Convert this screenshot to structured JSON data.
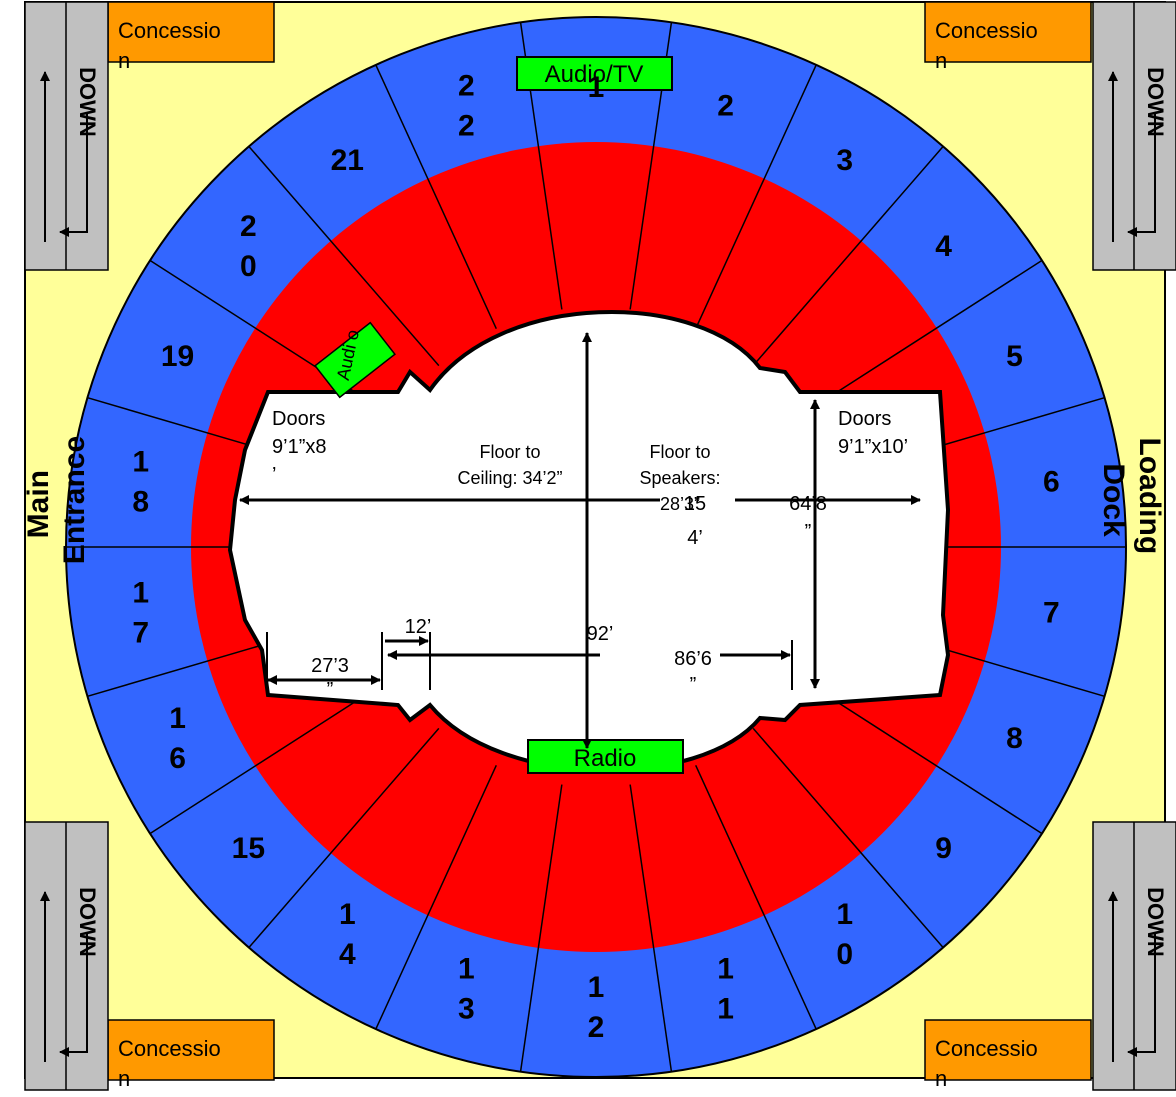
{
  "colors": {
    "background": "#ffff99",
    "outer_ring": "#3366ff",
    "inner_ring": "#ff0000",
    "concession": "#ff9900",
    "stairs": "#c0c0c0",
    "booth": "#00ff00",
    "floor": "#ffffff"
  },
  "concession_label": "Concessio\nn",
  "stairs_label": "DOWN",
  "booths": {
    "audio_tv": "Audio/TV",
    "radio": "Radio",
    "audio_small": "Audi\no"
  },
  "entrances": {
    "main": "Main\nEntrance",
    "loading": "Loading\nDock"
  },
  "sections": [
    {
      "label": "1"
    },
    {
      "label": "2"
    },
    {
      "label": "3"
    },
    {
      "label": "4"
    },
    {
      "label": "5"
    },
    {
      "label": "6"
    },
    {
      "label": "7"
    },
    {
      "label": "8"
    },
    {
      "label": "9"
    },
    {
      "label": "1\n0"
    },
    {
      "label": "1\n1"
    },
    {
      "label": "1\n2"
    },
    {
      "label": "1\n3"
    },
    {
      "label": "1\n4"
    },
    {
      "label": "15"
    },
    {
      "label": "1\n6"
    },
    {
      "label": "1\n7"
    },
    {
      "label": "1\n8"
    },
    {
      "label": "19"
    },
    {
      "label": "2\n0"
    },
    {
      "label": "21"
    },
    {
      "label": "2\n2"
    }
  ],
  "floor": {
    "doors_left": "Doors\n9’1”x8\n’",
    "doors_right": "Doors\n9’1”x10’",
    "floor_to_ceiling": "Floor to\nCeiling: 34’2”",
    "floor_to_speakers": "Floor to\nSpeakers:\n28’3”",
    "width": "15\n4’",
    "height": "92’",
    "right_height": "64’8\n”",
    "dim_12": "12’",
    "dim_27": "27’3\n”",
    "dim_86": "86’6\n”"
  }
}
